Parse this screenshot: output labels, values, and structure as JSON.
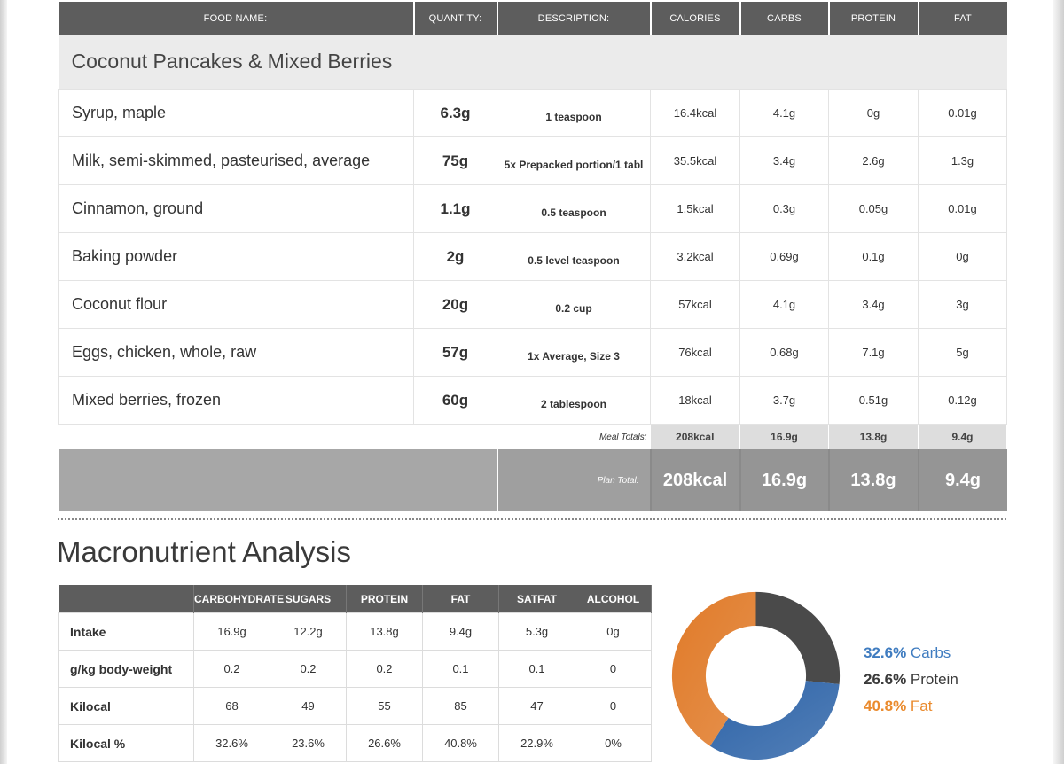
{
  "meal_table": {
    "headers": [
      "FOOD NAME:",
      "QUANTITY:",
      "DESCRIPTION:",
      "CALORIES",
      "CARBS",
      "PROTEIN",
      "FAT"
    ],
    "meal_title": "Coconut Pancakes & Mixed Berries",
    "items": [
      {
        "name": "Syrup, maple",
        "qty": "6.3g",
        "desc": "1 teaspoon",
        "cal": "16.4kcal",
        "carbs": "4.1g",
        "protein": "0g",
        "fat": "0.01g"
      },
      {
        "name": "Milk, semi-skimmed, pasteurised, average",
        "qty": "75g",
        "desc": "5x Prepacked portion/1 tabl",
        "cal": "35.5kcal",
        "carbs": "3.4g",
        "protein": "2.6g",
        "fat": "1.3g"
      },
      {
        "name": "Cinnamon, ground",
        "qty": "1.1g",
        "desc": "0.5 teaspoon",
        "cal": "1.5kcal",
        "carbs": "0.3g",
        "protein": "0.05g",
        "fat": "0.01g"
      },
      {
        "name": "Baking powder",
        "qty": "2g",
        "desc": "0.5 level teaspoon",
        "cal": "3.2kcal",
        "carbs": "0.69g",
        "protein": "0.1g",
        "fat": "0g"
      },
      {
        "name": "Coconut flour",
        "qty": "20g",
        "desc": "0.2 cup",
        "cal": "57kcal",
        "carbs": "4.1g",
        "protein": "3.4g",
        "fat": "3g"
      },
      {
        "name": "Eggs, chicken, whole, raw",
        "qty": "57g",
        "desc": "1x Average, Size 3",
        "cal": "76kcal",
        "carbs": "0.68g",
        "protein": "7.1g",
        "fat": "5g"
      },
      {
        "name": "Mixed berries, frozen",
        "qty": "60g",
        "desc": "2 tablespoon",
        "cal": "18kcal",
        "carbs": "3.7g",
        "protein": "0.51g",
        "fat": "0.12g"
      }
    ],
    "meal_totals": {
      "label": "Meal Totals:",
      "cal": "208kcal",
      "carbs": "16.9g",
      "protein": "13.8g",
      "fat": "9.4g"
    },
    "plan_total": {
      "label": "Plan Total:",
      "cal": "208kcal",
      "carbs": "16.9g",
      "protein": "13.8g",
      "fat": "9.4g"
    }
  },
  "analysis": {
    "title": "Macronutrient Analysis",
    "headers": [
      "",
      "CARBOHYDRATE",
      "SUGARS",
      "PROTEIN",
      "FAT",
      "SATFAT",
      "ALCOHOL"
    ],
    "rows": [
      {
        "label": "Intake",
        "values": [
          "16.9g",
          "12.2g",
          "13.8g",
          "9.4g",
          "5.3g",
          "0g"
        ]
      },
      {
        "label": "g/kg body-weight",
        "values": [
          "0.2",
          "0.2",
          "0.2",
          "0.1",
          "0.1",
          "0"
        ]
      },
      {
        "label": "Kilocal",
        "values": [
          "68",
          "49",
          "55",
          "85",
          "47",
          "0"
        ]
      },
      {
        "label": "Kilocal %",
        "values": [
          "32.6%",
          "23.6%",
          "26.6%",
          "40.8%",
          "22.9%",
          "0%"
        ]
      }
    ]
  },
  "chart_data": {
    "type": "pie",
    "labels": [
      "Protein",
      "Carbs",
      "Fat"
    ],
    "values": [
      26.6,
      32.6,
      40.8
    ],
    "colors": [
      "#4a4a4a",
      "#2e64a8",
      "#e07a28"
    ],
    "legend": [
      {
        "pct": "32.6%",
        "name": " Carbs"
      },
      {
        "pct": "26.6%",
        "name": " Protein"
      },
      {
        "pct": "40.8%",
        "name": " Fat"
      }
    ]
  }
}
